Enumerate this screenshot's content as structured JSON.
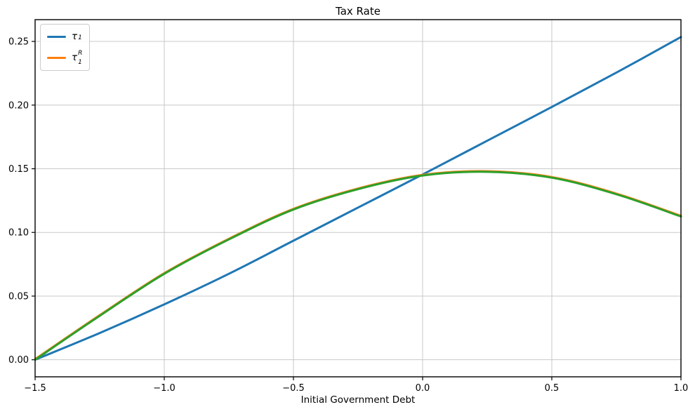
{
  "chart_data": {
    "type": "line",
    "title": "Tax Rate",
    "xlabel": "Initial Government Debt",
    "ylabel": "",
    "xlim": [
      -1.5,
      1.0
    ],
    "ylim": [
      -0.0134,
      0.2671
    ],
    "grid": true,
    "grid_color": "#c8c8c8",
    "spine_color": "#000000",
    "legend_position": "upper-left",
    "x_ticks": {
      "values": [
        -1.5,
        -1.0,
        -0.5,
        0.0,
        0.5,
        1.0
      ],
      "labels": [
        "−1.5",
        "−1.0",
        "−0.5",
        "0.0",
        "0.5",
        "1.0"
      ]
    },
    "y_ticks": {
      "values": [
        0.0,
        0.05,
        0.1,
        0.15,
        0.2,
        0.25
      ],
      "labels": [
        "0.00",
        "0.05",
        "0.10",
        "0.15",
        "0.20",
        "0.25"
      ]
    },
    "x": [
      -1.5,
      -1.25,
      -1.0,
      -0.75,
      -0.5,
      -0.25,
      0.0,
      0.25,
      0.5,
      0.75,
      1.0
    ],
    "series": [
      {
        "name": "tau1",
        "label_base": "τ",
        "label_sub": "1",
        "label_sup": "",
        "color": "#1f77b4",
        "in_legend": true,
        "values": [
          0.0,
          0.021,
          0.0435,
          0.0675,
          0.0935,
          0.1195,
          0.1455,
          0.172,
          0.1985,
          0.2255,
          0.2535
        ]
      },
      {
        "name": "tau1R",
        "label_base": "τ",
        "label_sub": "1",
        "label_sup": "R",
        "color": "#ff7f0e",
        "in_legend": true,
        "values": [
          0.0,
          0.0345,
          0.0675,
          0.0945,
          0.118,
          0.134,
          0.1447,
          0.1476,
          0.143,
          0.13,
          0.1125
        ]
      },
      {
        "name": "tau1R-overplot",
        "label_base": "",
        "label_sub": "",
        "label_sup": "",
        "color": "#2ca02c",
        "in_legend": false,
        "values": [
          0.0,
          0.0345,
          0.0675,
          0.0945,
          0.118,
          0.134,
          0.1447,
          0.1476,
          0.143,
          0.13,
          0.1125
        ]
      }
    ]
  }
}
